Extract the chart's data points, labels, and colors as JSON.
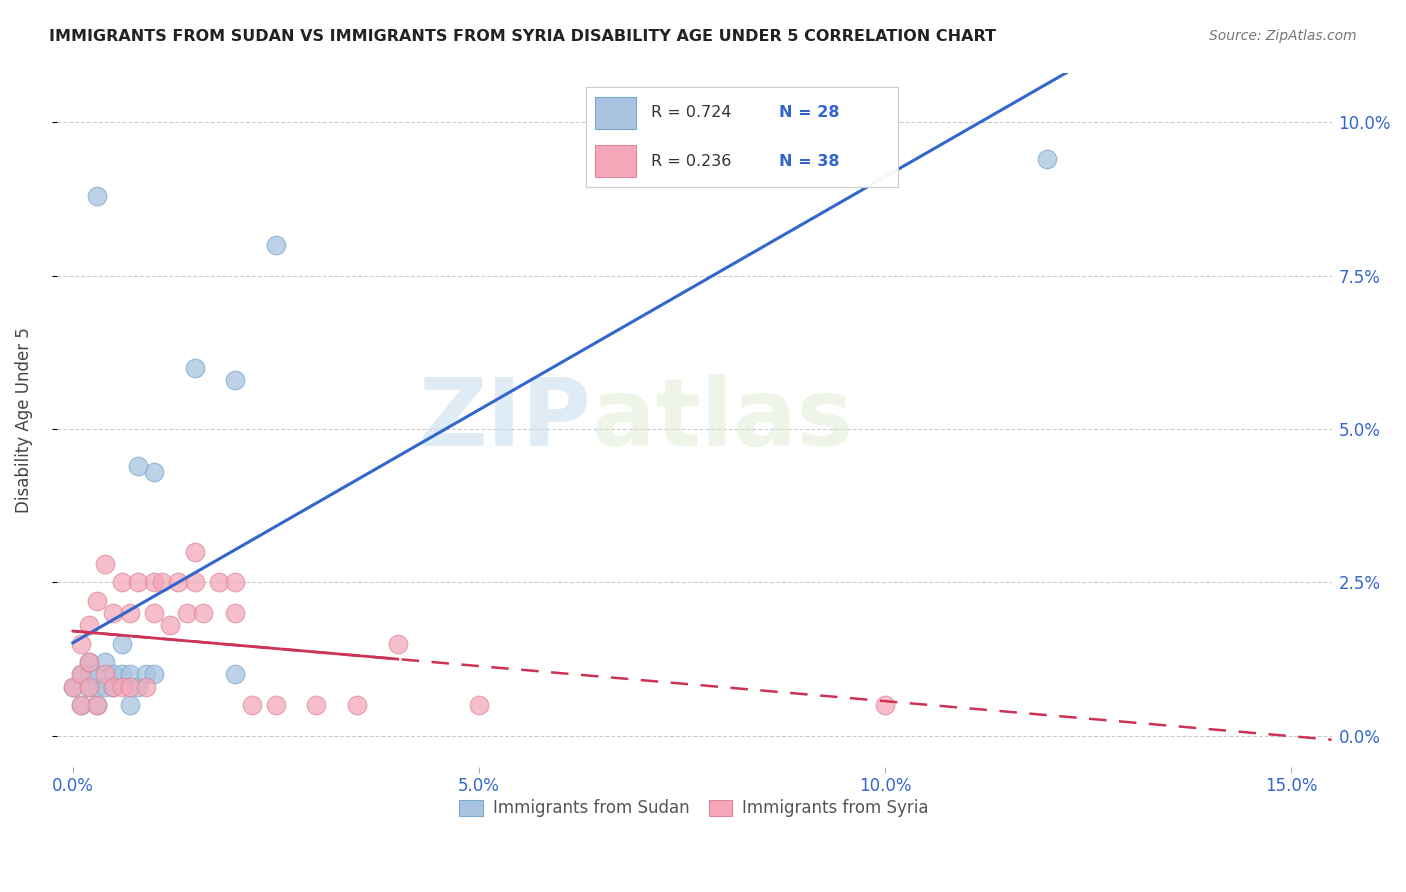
{
  "title": "IMMIGRANTS FROM SUDAN VS IMMIGRANTS FROM SYRIA DISABILITY AGE UNDER 5 CORRELATION CHART",
  "source": "Source: ZipAtlas.com",
  "ylabel": "Disability Age Under 5",
  "xlabel_vals": [
    0.0,
    0.05,
    0.1,
    0.15
  ],
  "ylabel_vals": [
    0.0,
    0.025,
    0.05,
    0.075,
    0.1
  ],
  "xlim": [
    -0.002,
    0.155
  ],
  "ylim": [
    -0.005,
    0.108
  ],
  "sudan_color": "#a8c4e0",
  "sudan_edge": "#7aa8cc",
  "syria_color": "#f4a7b9",
  "syria_edge": "#dd8899",
  "sudan_line_color": "#3366cc",
  "syria_line_color": "#cc3355",
  "sudan_R": "0.724",
  "sudan_N": "28",
  "syria_R": "0.236",
  "syria_N": "38",
  "watermark_zip": "ZIP",
  "watermark_atlas": "atlas",
  "sudan_x": [
    0.0,
    0.001,
    0.001,
    0.002,
    0.002,
    0.002,
    0.003,
    0.003,
    0.003,
    0.004,
    0.004,
    0.005,
    0.005,
    0.006,
    0.006,
    0.007,
    0.007,
    0.008,
    0.009,
    0.01,
    0.01,
    0.015,
    0.02,
    0.02,
    0.025,
    0.003,
    0.008,
    0.12
  ],
  "sudan_y": [
    0.008,
    0.005,
    0.01,
    0.008,
    0.01,
    0.012,
    0.005,
    0.008,
    0.01,
    0.008,
    0.012,
    0.008,
    0.01,
    0.01,
    0.015,
    0.005,
    0.01,
    0.008,
    0.01,
    0.01,
    0.043,
    0.06,
    0.01,
    0.058,
    0.08,
    0.088,
    0.044,
    0.094
  ],
  "syria_x": [
    0.0,
    0.001,
    0.001,
    0.001,
    0.002,
    0.002,
    0.002,
    0.003,
    0.003,
    0.004,
    0.004,
    0.005,
    0.005,
    0.006,
    0.006,
    0.007,
    0.007,
    0.008,
    0.009,
    0.01,
    0.01,
    0.011,
    0.012,
    0.013,
    0.014,
    0.015,
    0.015,
    0.016,
    0.018,
    0.02,
    0.02,
    0.022,
    0.025,
    0.03,
    0.035,
    0.04,
    0.05,
    0.1
  ],
  "syria_y": [
    0.008,
    0.005,
    0.01,
    0.015,
    0.008,
    0.012,
    0.018,
    0.005,
    0.022,
    0.01,
    0.028,
    0.008,
    0.02,
    0.008,
    0.025,
    0.008,
    0.02,
    0.025,
    0.008,
    0.02,
    0.025,
    0.025,
    0.018,
    0.025,
    0.02,
    0.025,
    0.03,
    0.02,
    0.025,
    0.02,
    0.025,
    0.005,
    0.005,
    0.005,
    0.005,
    0.015,
    0.005,
    0.005
  ],
  "legend_R_color": "#333333",
  "legend_N_color": "#3366cc"
}
